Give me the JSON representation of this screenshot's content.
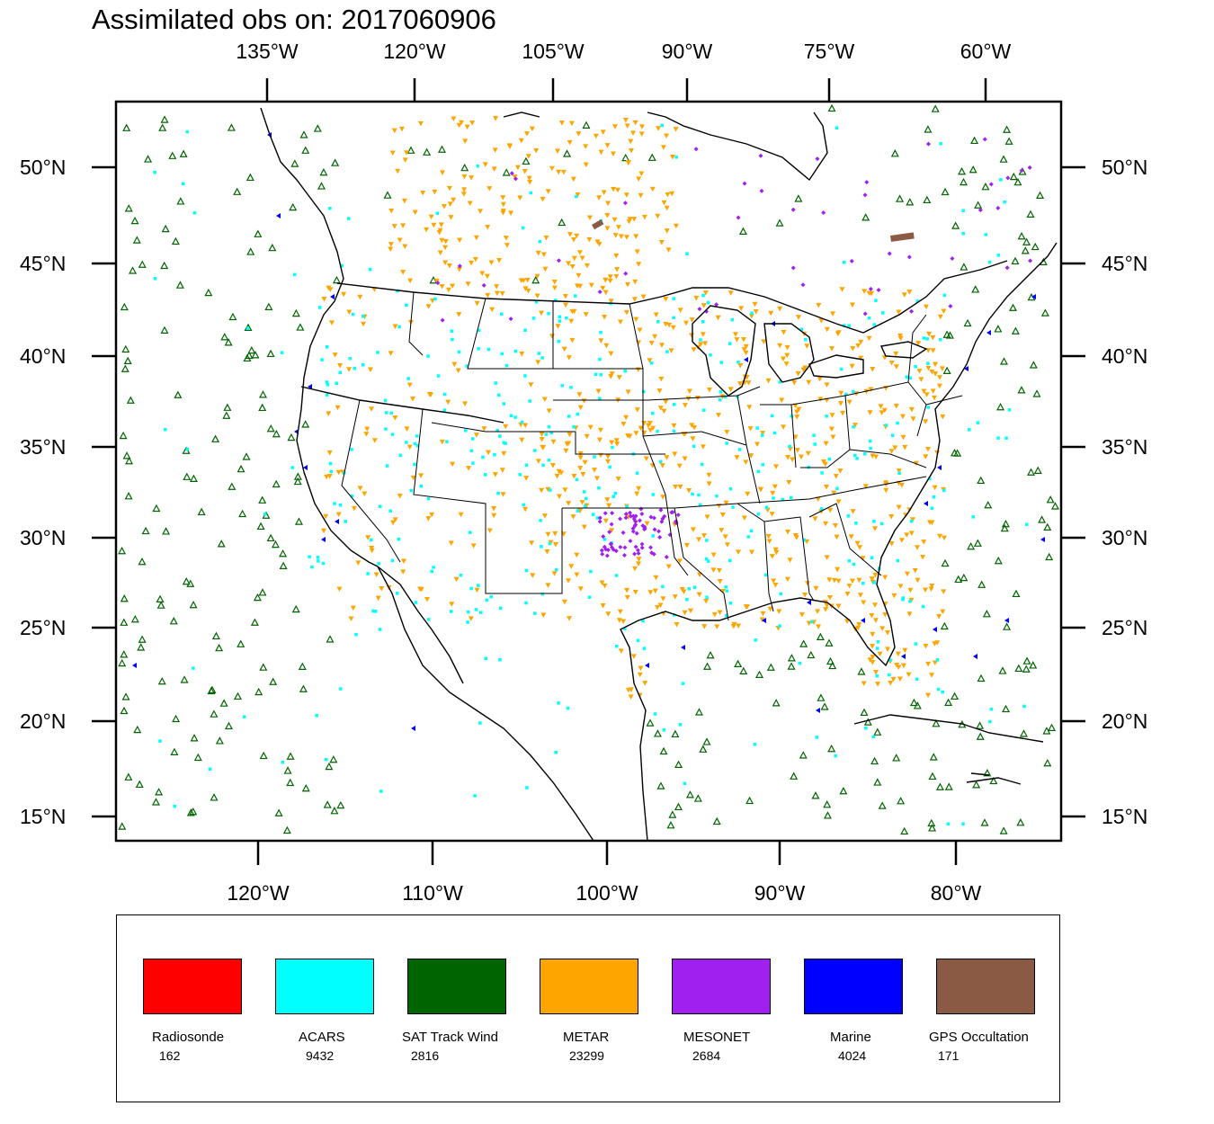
{
  "title": "Assimilated obs on: 2017060906",
  "axes": {
    "top_lon": [
      "135°W",
      "120°W",
      "105°W",
      "90°W",
      "75°W",
      "60°W"
    ],
    "bottom_lon": [
      "120°W",
      "110°W",
      "100°W",
      "90°W",
      "80°W"
    ],
    "lat": [
      "50°N",
      "45°N",
      "40°N",
      "35°N",
      "30°N",
      "25°N",
      "20°N",
      "15°N"
    ]
  },
  "legend": [
    {
      "name": "Radiosonde",
      "count": "162",
      "color": "#ff0000"
    },
    {
      "name": "ACARS",
      "count": "9432",
      "color": "#00ffff"
    },
    {
      "name": "SAT Track Wind",
      "count": "2816",
      "color": "#006400"
    },
    {
      "name": "METAR",
      "count": "23299",
      "color": "#ffa500"
    },
    {
      "name": "MESONET",
      "count": "2684",
      "color": "#a020f0"
    },
    {
      "name": "Marine",
      "count": "4024",
      "color": "#0000ff"
    },
    {
      "name": "GPS Occultation",
      "count": "171",
      "color": "#8b5a44"
    }
  ]
}
